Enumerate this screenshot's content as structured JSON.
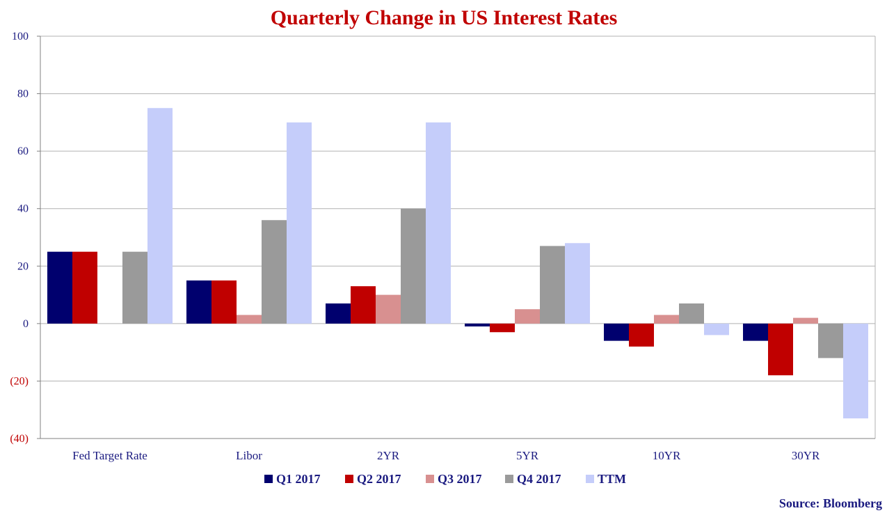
{
  "chart_data": {
    "type": "bar",
    "title": "Quarterly Change in US Interest Rates",
    "source": "Source: Bloomberg",
    "categories": [
      "Fed Target Rate",
      "Libor",
      "2YR",
      "5YR",
      "10YR",
      "30YR"
    ],
    "series": [
      {
        "name": "Q1 2017",
        "color": "#00006e",
        "values": [
          25,
          15,
          7,
          -1,
          -6,
          -6
        ]
      },
      {
        "name": "Q2 2017",
        "color": "#c00000",
        "values": [
          25,
          15,
          13,
          -3,
          -8,
          -18
        ]
      },
      {
        "name": "Q3 2017",
        "color": "#d89090",
        "values": [
          0,
          3,
          10,
          5,
          3,
          2
        ]
      },
      {
        "name": "Q4 2017",
        "color": "#9a9a9a",
        "values": [
          25,
          36,
          40,
          27,
          7,
          -12
        ]
      },
      {
        "name": "TTM",
        "color": "#c5cdfa",
        "values": [
          75,
          70,
          70,
          28,
          -4,
          -33
        ]
      }
    ],
    "ylim": [
      -40,
      100
    ],
    "yticks": [
      100,
      80,
      60,
      40,
      20,
      0,
      -20,
      -40
    ],
    "ytick_labels": [
      "100",
      "80",
      "60",
      "40",
      "20",
      "0",
      "(20)",
      "(40)"
    ],
    "grid": true,
    "legend_position": "bottom",
    "colors": {
      "title": "#c00000",
      "positive_tick": "#1a1a80",
      "negative_tick": "#c00000",
      "category_label": "#1a1a80",
      "legend_label": "#1a1a80",
      "source": "#1a1a80",
      "grid": "#b0b0b0",
      "axis": "#808080"
    }
  }
}
